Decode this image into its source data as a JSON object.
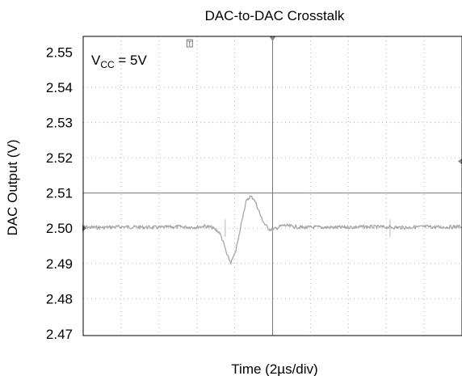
{
  "chart_data": {
    "type": "line",
    "title": "DAC-to-DAC Crosstalk",
    "xlabel": "Time (2µs/div)",
    "ylabel": "DAC Output (V)",
    "annotation": {
      "main": "V",
      "sub": "CC",
      "rest": " = 5V"
    },
    "ylim": [
      2.4695,
      2.5545
    ],
    "yticks": [
      2.55,
      2.54,
      2.53,
      2.52,
      2.51,
      2.5,
      2.49,
      2.48,
      2.47
    ],
    "ytick_labels": [
      "2.55",
      "2.54",
      "2.53",
      "2.52",
      "2.51",
      "2.50",
      "2.49",
      "2.48",
      "2.47"
    ],
    "x_divisions": 10,
    "xlim_div": [
      0,
      10
    ],
    "grid": true,
    "trace_color": "#a8a8a8",
    "series": [
      {
        "x": [
          0.0,
          0.5,
          1.0,
          1.5,
          2.0,
          2.5,
          3.0,
          3.2,
          3.4,
          3.6,
          3.7,
          3.8,
          3.9,
          4.0,
          4.1,
          4.2,
          4.3,
          4.4,
          4.5,
          4.6,
          4.7,
          4.8,
          4.9,
          5.0,
          5.1,
          5.2,
          5.3,
          5.5,
          5.8,
          6.2,
          6.6,
          7.0,
          7.5,
          8.0,
          8.5,
          9.0,
          9.5,
          10.0
        ],
        "y": [
          2.5003,
          2.5002,
          2.5004,
          2.5003,
          2.5002,
          2.5004,
          2.5003,
          2.5006,
          2.5002,
          2.4988,
          2.496,
          2.4922,
          2.4902,
          2.4925,
          2.497,
          2.503,
          2.5075,
          2.509,
          2.5085,
          2.506,
          2.503,
          2.501,
          2.4998,
          2.4995,
          2.5,
          2.5005,
          2.5008,
          2.5005,
          2.5002,
          2.5003,
          2.5002,
          2.5003,
          2.5004,
          2.5003,
          2.5002,
          2.5004,
          2.5003,
          2.5005
        ]
      }
    ]
  }
}
